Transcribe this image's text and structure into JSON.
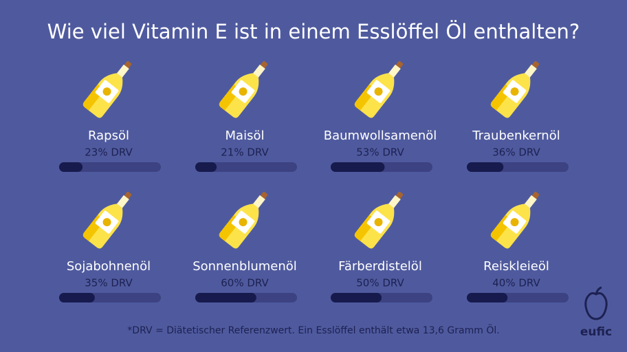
{
  "chart_data": {
    "type": "bar",
    "title": "Wie viel Vitamin E ist in einem Esslöffel Öl enthalten?",
    "categories": [
      "Rapsöl",
      "Maisöl",
      "Baumwollsamenöl",
      "Traubenkernöl",
      "Sojabohnenöl",
      "Sonnenblumenöl",
      "Färberdistelöl",
      "Reiskleieöl"
    ],
    "values": [
      23,
      21,
      53,
      36,
      35,
      60,
      50,
      40
    ],
    "value_labels": [
      "23% DRV",
      "21% DRV",
      "53% DRV",
      "36% DRV",
      "35% DRV",
      "60% DRV",
      "50% DRV",
      "40% DRV"
    ],
    "xlim": [
      0,
      100
    ],
    "color": "#171a4d",
    "note": "*DRV = Diätetischer Referenzwert. Ein Esslöffel enthält etwa 13,6 Gramm Öl."
  },
  "logo": "eufic"
}
